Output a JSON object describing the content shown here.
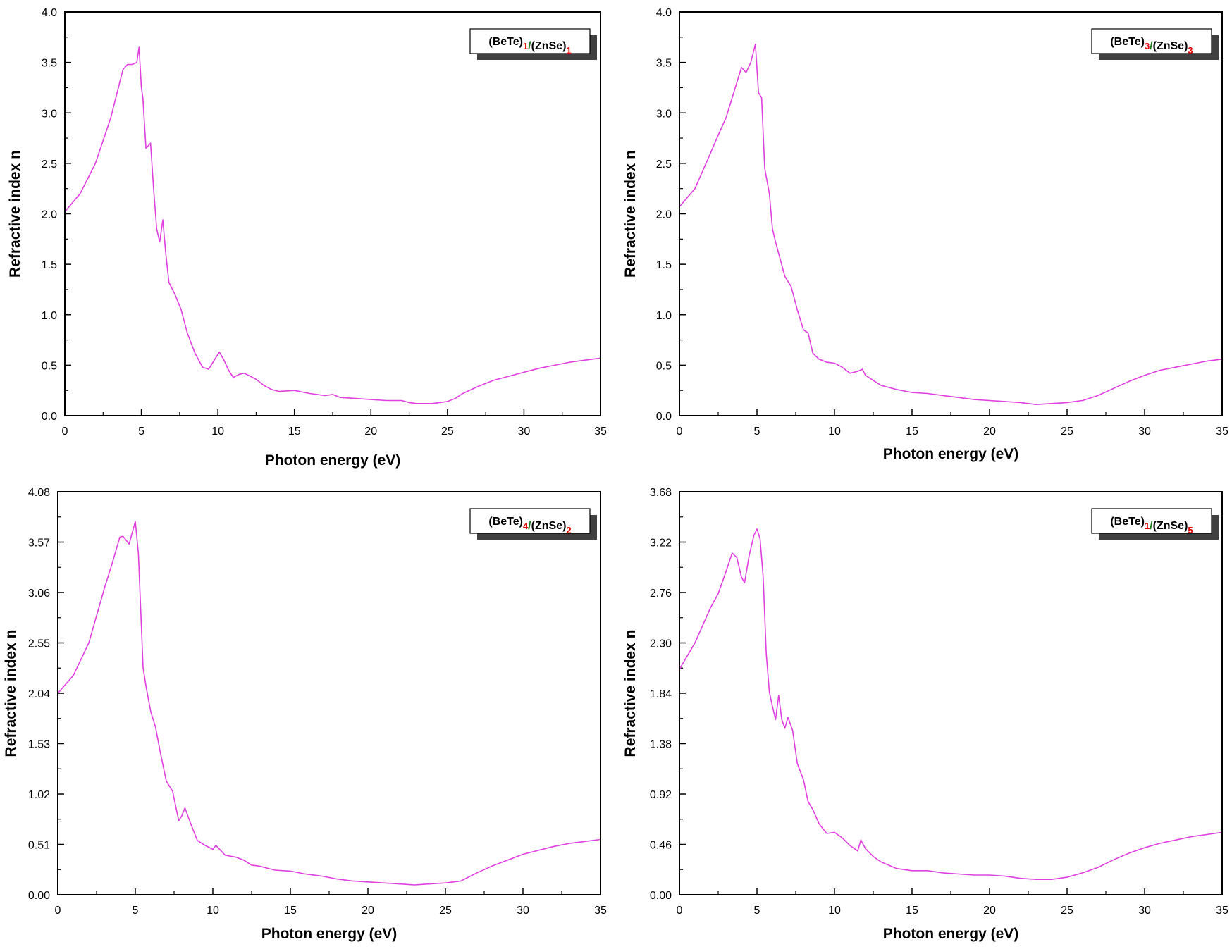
{
  "chart_data": [
    {
      "type": "line",
      "title": "",
      "xlabel": "Photon energy (eV)",
      "ylabel": "Refractive index n",
      "xlim": [
        0,
        35
      ],
      "ylim": [
        0,
        4.0
      ],
      "xticks": [
        "0",
        "5",
        "10",
        "15",
        "20",
        "25",
        "30",
        "35"
      ],
      "yticks": [
        "0.0",
        "0.5",
        "1.0",
        "1.5",
        "2.0",
        "2.5",
        "3.0",
        "3.5",
        "4.0"
      ],
      "grid": false,
      "legend": {
        "position": "top-right",
        "label": [
          {
            "text": "(BeTe)",
            "sub": "1",
            "sub_color": "#e00000"
          },
          {
            "text": "/",
            "color": "#1a7a1a"
          },
          {
            "text": "(ZnSe)",
            "sub": "1",
            "sub_color": "#e00000"
          }
        ]
      },
      "series": [
        {
          "name": "(BeTe)1/(ZnSe)1",
          "color": "#e040e0",
          "x": [
            0,
            1,
            2,
            3,
            3.8,
            4.1,
            4.4,
            4.7,
            4.85,
            5.0,
            5.1,
            5.3,
            5.6,
            5.8,
            6.0,
            6.2,
            6.4,
            6.6,
            6.8,
            7.2,
            7.6,
            8.0,
            8.5,
            9.0,
            9.4,
            9.8,
            10.1,
            10.4,
            10.7,
            11.0,
            11.4,
            11.7,
            12.0,
            12.5,
            13.0,
            13.5,
            14.0,
            15.0,
            16.0,
            17.0,
            17.5,
            18.0,
            19.0,
            20.0,
            21.0,
            22.0,
            22.5,
            23.0,
            24.0,
            25.0,
            25.5,
            26.0,
            27.0,
            28.0,
            29.0,
            30.0,
            31.0,
            32.0,
            33.0,
            34.0,
            35.0
          ],
          "y": [
            2.02,
            2.2,
            2.5,
            2.95,
            3.43,
            3.48,
            3.48,
            3.5,
            3.65,
            3.25,
            3.15,
            2.65,
            2.7,
            2.25,
            1.85,
            1.72,
            1.94,
            1.6,
            1.32,
            1.2,
            1.05,
            0.82,
            0.62,
            0.48,
            0.46,
            0.56,
            0.63,
            0.55,
            0.45,
            0.38,
            0.41,
            0.42,
            0.4,
            0.36,
            0.3,
            0.26,
            0.24,
            0.25,
            0.22,
            0.2,
            0.21,
            0.18,
            0.17,
            0.16,
            0.15,
            0.15,
            0.13,
            0.12,
            0.12,
            0.14,
            0.17,
            0.22,
            0.29,
            0.35,
            0.39,
            0.43,
            0.47,
            0.5,
            0.53,
            0.55,
            0.57
          ]
        }
      ]
    },
    {
      "type": "line",
      "title": "",
      "xlabel": "Photon energy (eV)",
      "ylabel": "Refractive index n",
      "xlim": [
        0,
        35
      ],
      "ylim": [
        0,
        4.0
      ],
      "xticks": [
        "0",
        "5",
        "10",
        "15",
        "20",
        "25",
        "30",
        "35"
      ],
      "yticks": [
        "0.0",
        "0.5",
        "1.0",
        "1.5",
        "2.0",
        "2.5",
        "3.0",
        "3.5",
        "4.0"
      ],
      "grid": false,
      "legend": {
        "position": "top-right",
        "label": [
          {
            "text": "(BeTe)",
            "sub": "3",
            "sub_color": "#e00000"
          },
          {
            "text": "/",
            "color": "#1a7a1a"
          },
          {
            "text": "(ZnSe)",
            "sub": "3",
            "sub_color": "#e00000"
          }
        ]
      },
      "series": [
        {
          "name": "(BeTe)3/(ZnSe)3",
          "color": "#e040e0",
          "x": [
            0,
            1,
            2,
            2.5,
            3.0,
            3.5,
            4.0,
            4.3,
            4.6,
            4.9,
            5.1,
            5.3,
            5.5,
            5.8,
            6.0,
            6.2,
            6.5,
            6.8,
            7.2,
            7.6,
            8.0,
            8.3,
            8.6,
            9.0,
            9.5,
            10.0,
            10.5,
            11.0,
            11.5,
            11.8,
            12.0,
            12.5,
            13.0,
            14.0,
            15.0,
            16.0,
            17.0,
            18.0,
            19.0,
            20.0,
            21.0,
            22.0,
            23.0,
            24.0,
            25.0,
            26.0,
            27.0,
            28.0,
            29.0,
            30.0,
            31.0,
            32.0,
            33.0,
            34.0,
            35.0
          ],
          "y": [
            2.07,
            2.25,
            2.6,
            2.78,
            2.95,
            3.2,
            3.45,
            3.4,
            3.5,
            3.68,
            3.2,
            3.15,
            2.45,
            2.2,
            1.85,
            1.72,
            1.55,
            1.38,
            1.28,
            1.05,
            0.85,
            0.82,
            0.62,
            0.56,
            0.53,
            0.52,
            0.48,
            0.42,
            0.44,
            0.46,
            0.4,
            0.35,
            0.3,
            0.26,
            0.23,
            0.22,
            0.2,
            0.18,
            0.16,
            0.15,
            0.14,
            0.13,
            0.11,
            0.12,
            0.13,
            0.15,
            0.2,
            0.27,
            0.34,
            0.4,
            0.45,
            0.48,
            0.51,
            0.54,
            0.56
          ]
        }
      ]
    },
    {
      "type": "line",
      "title": "",
      "xlabel": "Photon energy (eV)",
      "ylabel": "Refractive index n",
      "xlim": [
        0,
        35
      ],
      "ylim": [
        0,
        4.08
      ],
      "xticks": [
        "0",
        "5",
        "10",
        "15",
        "20",
        "25",
        "30",
        "35"
      ],
      "yticks": [
        "0.00",
        "0.51",
        "1.02",
        "1.53",
        "2.04",
        "2.55",
        "3.06",
        "3.57",
        "4.08"
      ],
      "grid": false,
      "legend": {
        "position": "top-right",
        "label": [
          {
            "text": "(BeTe)",
            "sub": "4",
            "sub_color": "#e00000"
          },
          {
            "text": "/",
            "color": "#1a7a1a"
          },
          {
            "text": "(ZnSe)",
            "sub": "2",
            "sub_color": "#e00000"
          }
        ]
      },
      "series": [
        {
          "name": "(BeTe)4/(ZnSe)2",
          "color": "#e040e0",
          "x": [
            0,
            1,
            2,
            3.0,
            3.5,
            4.0,
            4.2,
            4.6,
            5.0,
            5.2,
            5.5,
            5.7,
            6.0,
            6.3,
            6.6,
            7.0,
            7.4,
            7.8,
            8.0,
            8.2,
            8.5,
            9.0,
            9.5,
            10.0,
            10.2,
            10.5,
            10.8,
            11.5,
            12.0,
            12.5,
            13.0,
            14.0,
            15.0,
            16.0,
            17.0,
            18.0,
            19.0,
            20.0,
            21.0,
            22.0,
            23.0,
            24.0,
            25.0,
            26.0,
            27.0,
            28.0,
            29.0,
            30.0,
            31.0,
            32.0,
            33.0,
            34.0,
            35.0
          ],
          "y": [
            2.04,
            2.22,
            2.55,
            3.1,
            3.35,
            3.62,
            3.63,
            3.55,
            3.78,
            3.45,
            2.3,
            2.1,
            1.85,
            1.7,
            1.45,
            1.15,
            1.05,
            0.75,
            0.8,
            0.88,
            0.75,
            0.55,
            0.5,
            0.46,
            0.5,
            0.45,
            0.4,
            0.38,
            0.35,
            0.3,
            0.29,
            0.25,
            0.24,
            0.21,
            0.19,
            0.16,
            0.14,
            0.13,
            0.12,
            0.11,
            0.1,
            0.11,
            0.12,
            0.14,
            0.22,
            0.29,
            0.35,
            0.41,
            0.45,
            0.49,
            0.52,
            0.54,
            0.56
          ]
        }
      ]
    },
    {
      "type": "line",
      "title": "",
      "xlabel": "Photon energy (eV)",
      "ylabel": "Refractive index n",
      "xlim": [
        0,
        35
      ],
      "ylim": [
        0,
        3.68
      ],
      "xticks": [
        "0",
        "5",
        "10",
        "15",
        "20",
        "25",
        "30",
        "35"
      ],
      "yticks": [
        "0.00",
        "0.46",
        "0.92",
        "1.38",
        "1.84",
        "2.30",
        "2.76",
        "3.22",
        "3.68"
      ],
      "grid": false,
      "legend": {
        "position": "top-right",
        "label": [
          {
            "text": "(BeTe)",
            "sub": "1",
            "sub_color": "#e00000"
          },
          {
            "text": "/",
            "color": "#1a7a1a"
          },
          {
            "text": "(ZnSe)",
            "sub": "5",
            "sub_color": "#e00000"
          }
        ]
      },
      "series": [
        {
          "name": "(BeTe)1/(ZnSe)5",
          "color": "#e040e0",
          "x": [
            0,
            1,
            2,
            2.5,
            3.0,
            3.4,
            3.7,
            4.0,
            4.2,
            4.5,
            4.8,
            5.0,
            5.2,
            5.4,
            5.6,
            5.8,
            6.0,
            6.2,
            6.4,
            6.6,
            6.8,
            7.0,
            7.3,
            7.6,
            8.0,
            8.3,
            8.6,
            9.0,
            9.5,
            10.0,
            10.5,
            11.0,
            11.5,
            11.7,
            12.0,
            12.5,
            13.0,
            14.0,
            15.0,
            16.0,
            17.0,
            18.0,
            19.0,
            20.0,
            21.0,
            22.0,
            23.0,
            24.0,
            25.0,
            26.0,
            27.0,
            28.0,
            29.0,
            30.0,
            31.0,
            32.0,
            33.0,
            34.0,
            35.0
          ],
          "y": [
            2.06,
            2.3,
            2.62,
            2.75,
            2.95,
            3.12,
            3.08,
            2.9,
            2.85,
            3.1,
            3.28,
            3.34,
            3.25,
            2.9,
            2.2,
            1.85,
            1.72,
            1.6,
            1.82,
            1.6,
            1.52,
            1.62,
            1.5,
            1.2,
            1.05,
            0.85,
            0.78,
            0.65,
            0.56,
            0.57,
            0.52,
            0.45,
            0.4,
            0.5,
            0.42,
            0.35,
            0.3,
            0.24,
            0.22,
            0.22,
            0.2,
            0.19,
            0.18,
            0.18,
            0.17,
            0.15,
            0.14,
            0.14,
            0.16,
            0.2,
            0.25,
            0.32,
            0.38,
            0.43,
            0.47,
            0.5,
            0.53,
            0.55,
            0.57
          ]
        }
      ]
    }
  ]
}
